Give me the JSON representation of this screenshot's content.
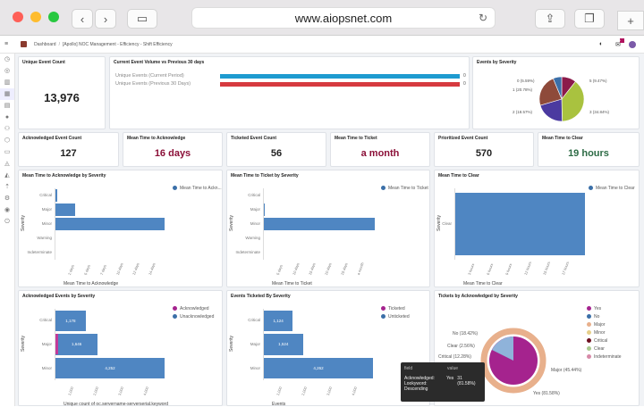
{
  "browser": {
    "url": "www.aiopsnet.com",
    "back": "‹",
    "forward": "›",
    "new_tab": "+"
  },
  "header": {
    "breadcrumb_root": "Dashboard",
    "breadcrumb_sep": "/",
    "breadcrumb_page": "[Apollo] NOC Management - Efficiency - Shift Efficiency",
    "notif_count": "•"
  },
  "colors": {
    "blue": "#4f86c2",
    "current": "#1e9bd0",
    "previous": "#d63a3f",
    "maroon": "#8b1038",
    "green": "#2d6b45",
    "magenta": "#a5238e"
  },
  "metrics": {
    "unique": {
      "title": "Unique Event Count",
      "value": "13,976"
    },
    "ack": {
      "title": "Acknowledged Event Count",
      "value": "127"
    },
    "mtta": {
      "title": "Mean Time to Acknowledge",
      "value": "16 days"
    },
    "ticketed": {
      "title": "Ticketed Event Count",
      "value": "56"
    },
    "mttt": {
      "title": "Mean Time to Ticket",
      "value": "a month"
    },
    "prioritized": {
      "title": "Prioritized Event Count",
      "value": "570"
    },
    "mttc": {
      "title": "Mean Time to Clear",
      "value": "19 hours"
    }
  },
  "volume": {
    "title": "Current Event Volume vs Previous 30 days",
    "rows": [
      {
        "label": "Unique Events (Current Period)",
        "value": "0"
      },
      {
        "label": "Unique Events (Previous 30 Days)",
        "value": "0"
      }
    ]
  },
  "chart_data": [
    {
      "type": "pie",
      "title": "Events by Severity",
      "categories": [
        "0",
        "1",
        "2",
        "3",
        "5"
      ],
      "values": [
        5.59,
        20.78,
        18.57,
        34.84,
        9.47
      ],
      "labels": [
        "0 (5.59%)",
        "1 (20.78%)",
        "2 (18.57%)",
        "3 (34.84%)",
        "5 (9.47%)"
      ]
    },
    {
      "type": "bar",
      "title": "Mean Time to Acknowledge by Severity",
      "ylabel": "Severity",
      "xlabel": "Mean Time to Acknowledge",
      "legend": "Mean Time to Ackn...",
      "categories": [
        "Critical",
        "Major",
        "Minor",
        "Warning",
        "Indeterminate"
      ],
      "values": [
        1,
        11,
        60,
        0,
        0
      ],
      "ticks": [
        "2 days",
        "5 days",
        "7 days",
        "10 days",
        "12 days",
        "14 days"
      ]
    },
    {
      "type": "bar",
      "title": "Mean Time to Ticket by Severity",
      "ylabel": "Severity",
      "xlabel": "Mean Time to Ticket",
      "legend": "Mean Time to Ticket",
      "categories": [
        "Critical",
        "Major",
        "Minor",
        "Warning",
        "Indeterminate"
      ],
      "values": [
        0,
        0.5,
        62,
        0,
        0
      ],
      "ticks": [
        "5 days",
        "10 days",
        "15 days",
        "20 days",
        "25 days",
        "a month"
      ]
    },
    {
      "type": "bar",
      "title": "Mean Time to Clear",
      "ylabel": "Severity",
      "xlabel": "Mean Time to Clear",
      "legend": "Mean Time to Clear",
      "categories": [
        "Clear"
      ],
      "values": [
        19
      ],
      "ticks": [
        "3 hours",
        "6 hours",
        "9 hours",
        "12 hours",
        "15 hours",
        "17 hours"
      ]
    },
    {
      "type": "bar",
      "title": "Acknowledged Events by Severity",
      "ylabel": "Severity",
      "xlabel": "Unique count of oc.servername-serverserial.keyword",
      "legend": [
        "Acknowledged",
        "Unacknowledged"
      ],
      "categories": [
        "Critical",
        "Major",
        "Minor"
      ],
      "values": [
        1178,
        1646,
        4252
      ],
      "data_labels": [
        "1,178",
        "1,646",
        "4,252"
      ],
      "ticks": [
        "1,000",
        "2,000",
        "3,000",
        "4,000"
      ]
    },
    {
      "type": "bar",
      "title": "Events Ticketed By Severity",
      "ylabel": "Severity",
      "xlabel": "Events",
      "legend": [
        "Ticketed",
        "Unticketed"
      ],
      "categories": [
        "Critical",
        "Major",
        "Minor"
      ],
      "values": [
        1124,
        1524,
        4262
      ],
      "data_labels": [
        "1,124",
        "1,524",
        "4,262"
      ],
      "ticks": [
        "1,000",
        "2,000",
        "3,000",
        "4,000"
      ]
    },
    {
      "type": "pie",
      "title": "Tickets by Acknowledged by Severity",
      "legend": [
        "Yes",
        "No",
        "Major",
        "Minor",
        "Critical",
        "Clear",
        "Indeterminate"
      ],
      "labels": [
        "No (18.42%)",
        "Clear (2.56%)",
        "Critical (12.28%)",
        "Major (45.44%)",
        "Yes (81.58%)"
      ]
    }
  ],
  "tooltip": {
    "h1": "field",
    "h2": "value",
    "field": "Acknowledged: Lookyword: Descending",
    "value": "Yes",
    "count": "31 (81.58%)"
  }
}
